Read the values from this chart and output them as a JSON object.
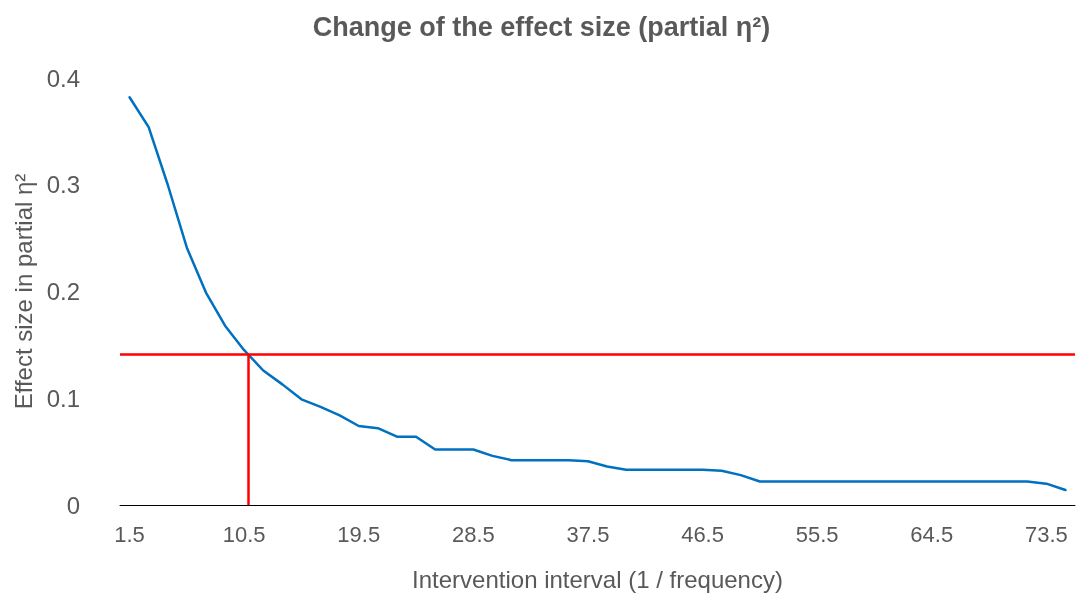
{
  "chart_data": {
    "type": "line",
    "title": "Change of the effect size (partial η²)",
    "xlabel": "Intervention interval (1 / frequency)",
    "ylabel": "Effect size in partial η²",
    "x": [
      1.5,
      3,
      4.5,
      6,
      7.5,
      9,
      10.5,
      12,
      13.5,
      15,
      16.5,
      18,
      19.5,
      21,
      22.5,
      24,
      25.5,
      27,
      28.5,
      30,
      31.5,
      33,
      34.5,
      36,
      37.5,
      39,
      40.5,
      42,
      43.5,
      45,
      46.5,
      48,
      49.5,
      51,
      52.5,
      54,
      55.5,
      57,
      58.5,
      60,
      61.5,
      63,
      64.5,
      66,
      67.5,
      69,
      70.5,
      72,
      73.5,
      75
    ],
    "series": [
      {
        "color": "#0070c0",
        "values": [
          0.382,
          0.354,
          0.3,
          0.241,
          0.199,
          0.168,
          0.145,
          0.126,
          0.113,
          0.099,
          0.092,
          0.084,
          0.074,
          0.072,
          0.064,
          0.064,
          0.052,
          0.052,
          0.052,
          0.046,
          0.042,
          0.042,
          0.042,
          0.042,
          0.041,
          0.036,
          0.033,
          0.033,
          0.033,
          0.033,
          0.033,
          0.032,
          0.028,
          0.022,
          0.022,
          0.022,
          0.022,
          0.022,
          0.022,
          0.022,
          0.022,
          0.022,
          0.022,
          0.022,
          0.022,
          0.022,
          0.022,
          0.022,
          0.02,
          0.014
        ]
      }
    ],
    "ref_lines": [
      {
        "axis": "y",
        "value": 0.141,
        "color": "#ff0000"
      },
      {
        "axis": "x",
        "value": 10.8,
        "color": "#ff0000"
      }
    ],
    "xlim": [
      0.75,
      75.75
    ],
    "xticks": [
      1.5,
      10.5,
      19.5,
      28.5,
      37.5,
      46.5,
      55.5,
      64.5,
      73.5
    ],
    "ylim": [
      0,
      0.4
    ],
    "yticks": [
      0,
      0.1,
      0.2,
      0.3,
      0.4
    ],
    "grid": false,
    "marker": "none",
    "line_style": "solid"
  }
}
